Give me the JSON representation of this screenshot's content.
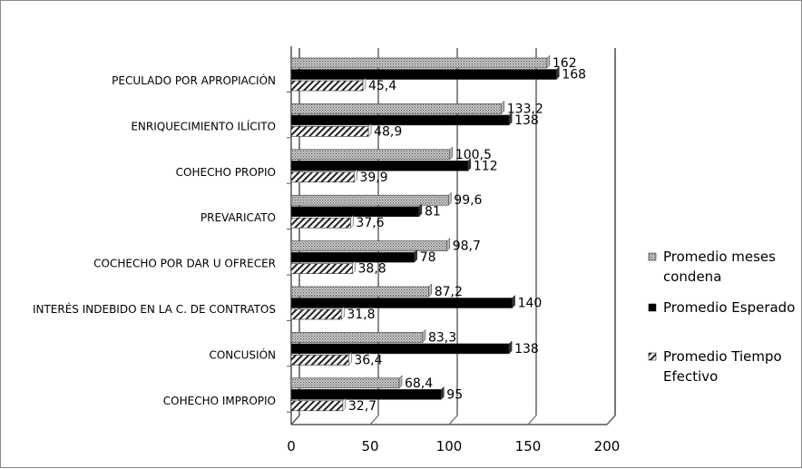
{
  "chart_data": {
    "type": "bar",
    "orientation": "horizontal",
    "categories": [
      "PECULADO POR APROPIACIÓN",
      "ENRIQUECIMIENTO ILÍCITO",
      "COHECHO PROPIO",
      "PREVARICATO",
      "COCHECHO POR DAR U OFRECER",
      "INTERÉS INDEBIDO EN LA C. DE CONTRATOS",
      "CONCUSIÓN",
      "COHECHO IMPROPIO"
    ],
    "series": [
      {
        "name": "Promedio meses condena",
        "name_lines": [
          "Promedio meses",
          "condena"
        ],
        "values": [
          162,
          133.2,
          100.5,
          99.6,
          98.7,
          87.2,
          83.3,
          68.4
        ],
        "labels": [
          "162",
          "133,2",
          "100,5",
          "99,6",
          "98,7",
          "87,2",
          "83,3",
          "68,4"
        ],
        "pattern": "dotted-grey"
      },
      {
        "name": "Promedio Esperado",
        "name_lines": [
          "Promedio Esperado"
        ],
        "values": [
          168,
          138,
          112,
          81,
          78,
          140,
          138,
          95
        ],
        "labels": [
          "168",
          "138",
          "112",
          "81",
          "78",
          "140",
          "138",
          "95"
        ],
        "pattern": "solid-black"
      },
      {
        "name": "Promedio Tiempo Efectivo",
        "name_lines": [
          "Promedio Tiempo",
          "Efectivo"
        ],
        "values": [
          45.4,
          48.9,
          39.9,
          37.6,
          38.8,
          31.8,
          36.4,
          32.7
        ],
        "labels": [
          "45,4",
          "48,9",
          "39,9",
          "37,6",
          "38,8",
          "31,8",
          "36,4",
          "32,7"
        ],
        "pattern": "diagonal-hatch"
      }
    ],
    "xlim": [
      0,
      200
    ],
    "xticks": [
      "0",
      "50",
      "100",
      "150",
      "200"
    ],
    "grid": "vertical",
    "legend_position": "right",
    "title": "",
    "xlabel": "",
    "ylabel": ""
  }
}
